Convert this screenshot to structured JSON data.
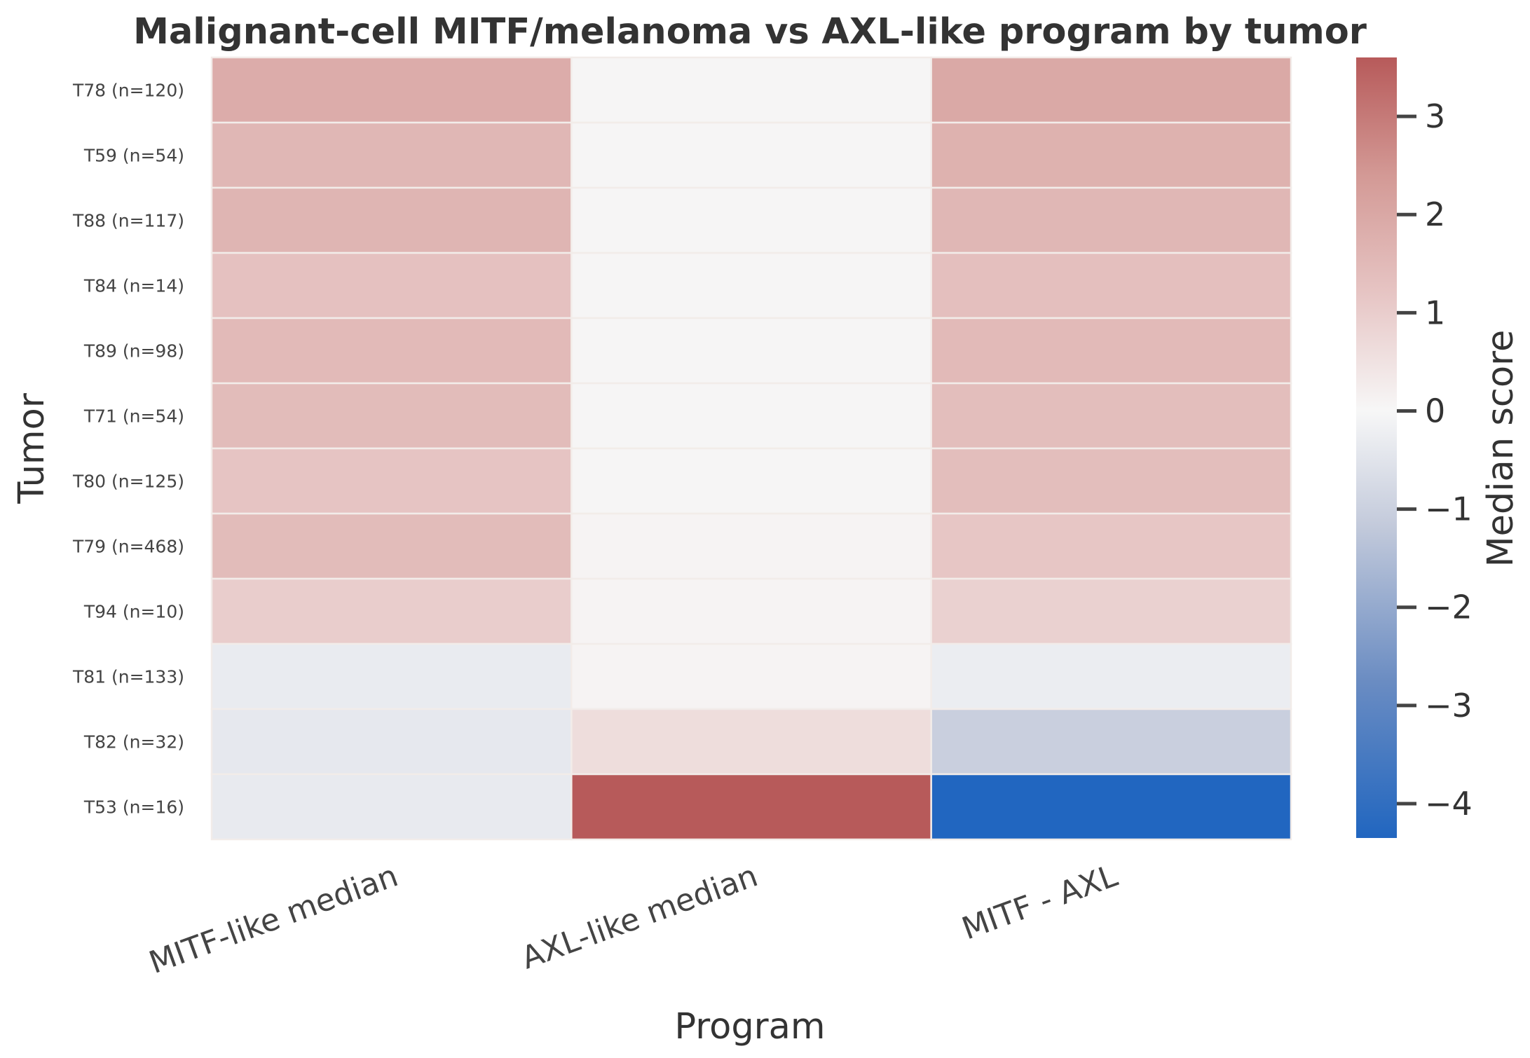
{
  "chart_data": {
    "type": "heatmap",
    "title": "Malignant-cell MITF/melanoma vs AXL-like program by tumor",
    "xlabel": "Program",
    "ylabel": "Tumor",
    "colorbar_label": "Median score",
    "colorbar_range": [
      -4.35,
      3.6
    ],
    "colorbar_ticks": [
      3,
      2,
      1,
      0,
      -1,
      -2,
      -3,
      -4
    ],
    "colorbar_tick_labels": [
      "3",
      "2",
      "1",
      "0",
      "−1",
      "−2",
      "−3",
      "−4"
    ],
    "colormap": [
      "#2166c0",
      "#f7f7f7",
      "#b75a5a"
    ],
    "columns": [
      "MITF-like median",
      "AXL-like median",
      "MITF - AXL"
    ],
    "rows": [
      "T78 (n=120)",
      "T59 (n=54)",
      "T88 (n=117)",
      "T84 (n=14)",
      "T89 (n=98)",
      "T71 (n=54)",
      "T80 (n=125)",
      "T79 (n=468)",
      "T94 (n=10)",
      "T81 (n=133)",
      "T82 (n=32)",
      "T53 (n=16)"
    ],
    "values": [
      [
        1.95,
        0.05,
        2.05
      ],
      [
        1.65,
        0.05,
        1.8
      ],
      [
        1.7,
        0.05,
        1.65
      ],
      [
        1.35,
        0.05,
        1.4
      ],
      [
        1.55,
        0.05,
        1.55
      ],
      [
        1.5,
        0.05,
        1.45
      ],
      [
        1.25,
        0.05,
        1.45
      ],
      [
        1.5,
        0.1,
        1.2
      ],
      [
        1.05,
        0.1,
        0.95
      ],
      [
        -0.4,
        0.1,
        -0.35
      ],
      [
        -0.5,
        0.65,
        -1.35
      ],
      [
        -0.45,
        3.6,
        -4.35
      ]
    ]
  }
}
